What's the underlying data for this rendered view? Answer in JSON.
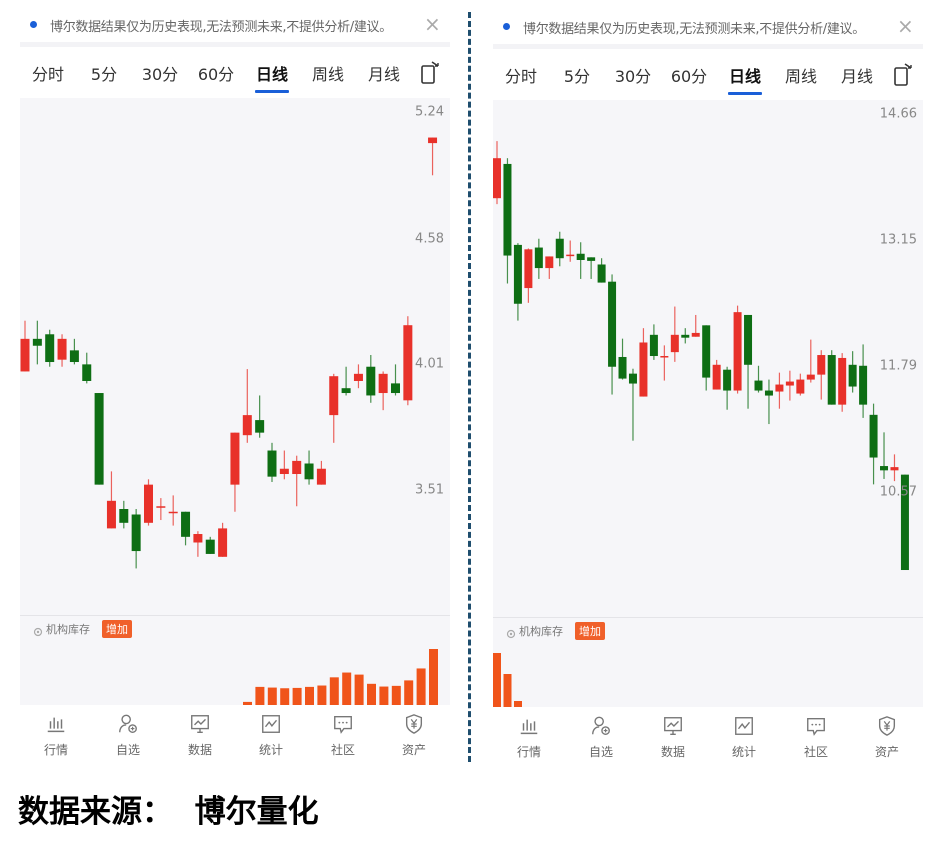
{
  "colors": {
    "up": "#e8312a",
    "down": "#0e6e14",
    "accent": "#1a5fd8",
    "volume": "#f0541a",
    "divider": "#1f4e6e"
  },
  "panels": [
    {
      "notice": "博尔数据结果仅为历史表现,无法预测未来,不提供分析/建议。",
      "notice_close_icon": "close-icon",
      "tabs": [
        "分时",
        "5分",
        "30分",
        "60分",
        "日线",
        "周线",
        "月线"
      ],
      "active_tab": "日线",
      "rotate_icon": "rotate-screen-icon",
      "indicator_label": "机构库存",
      "indicator_badge": "增加",
      "nav": [
        "行情",
        "自选",
        "数据",
        "统计",
        "社区",
        "资产"
      ]
    },
    {
      "notice": "博尔数据结果仅为历史表现,无法预测未来,不提供分析/建议。",
      "notice_close_icon": "close-icon",
      "tabs": [
        "分时",
        "5分",
        "30分",
        "60分",
        "日线",
        "周线",
        "月线"
      ],
      "active_tab": "日线",
      "rotate_icon": "rotate-screen-icon",
      "indicator_label": "机构库存",
      "indicator_badge": "增加",
      "nav": [
        "行情",
        "自选",
        "数据",
        "统计",
        "社区",
        "资产"
      ]
    }
  ],
  "footer": "数据来源：  博尔量化",
  "chart_data": [
    {
      "type": "candlestick",
      "scale": "log",
      "y_ticks": [
        "5.24",
        "4.58",
        "4.01",
        "3.51"
      ],
      "ylim": [
        3.51,
        5.24
      ],
      "candles_ohlc": [
        [
          3.98,
          4.2,
          3.98,
          4.12
        ],
        [
          4.12,
          4.2,
          4.01,
          4.09
        ],
        [
          4.14,
          4.16,
          4.0,
          4.02
        ],
        [
          4.03,
          4.14,
          4.0,
          4.12
        ],
        [
          4.07,
          4.12,
          4.01,
          4.02
        ],
        [
          4.01,
          4.06,
          3.93,
          3.94
        ],
        [
          3.89,
          3.89,
          3.53,
          3.53
        ],
        [
          3.37,
          3.58,
          3.37,
          3.47
        ],
        [
          3.44,
          3.47,
          3.37,
          3.39
        ],
        [
          3.42,
          3.44,
          3.23,
          3.29
        ],
        [
          3.39,
          3.55,
          3.38,
          3.53
        ],
        [
          3.45,
          3.48,
          3.4,
          3.45
        ],
        [
          3.43,
          3.49,
          3.38,
          3.43
        ],
        [
          3.43,
          3.43,
          3.31,
          3.34
        ],
        [
          3.32,
          3.36,
          3.27,
          3.35
        ],
        [
          3.33,
          3.34,
          3.28,
          3.28
        ],
        [
          3.27,
          3.39,
          3.27,
          3.37
        ],
        [
          3.53,
          3.73,
          3.43,
          3.73
        ],
        [
          3.72,
          3.99,
          3.69,
          3.8
        ],
        [
          3.78,
          3.88,
          3.71,
          3.73
        ],
        [
          3.66,
          3.69,
          3.54,
          3.56
        ],
        [
          3.57,
          3.66,
          3.55,
          3.59
        ],
        [
          3.57,
          3.64,
          3.45,
          3.62
        ],
        [
          3.61,
          3.66,
          3.53,
          3.55
        ],
        [
          3.53,
          3.62,
          3.53,
          3.59
        ],
        [
          3.8,
          3.97,
          3.69,
          3.96
        ],
        [
          3.91,
          4.0,
          3.88,
          3.89
        ],
        [
          3.94,
          4.01,
          3.91,
          3.97
        ],
        [
          4.0,
          4.05,
          3.85,
          3.88
        ],
        [
          3.89,
          3.98,
          3.82,
          3.97
        ],
        [
          3.93,
          4.01,
          3.88,
          3.89
        ],
        [
          3.86,
          4.22,
          3.84,
          4.18
        ],
        null,
        [
          5.07,
          5.1,
          4.9,
          5.1
        ]
      ],
      "indicator_values": [
        12,
        56,
        54,
        52,
        53,
        56,
        60,
        84,
        98,
        92,
        65,
        57,
        59,
        75,
        110,
        167
      ]
    },
    {
      "type": "candlestick",
      "scale": "log",
      "y_ticks": [
        "14.66",
        "13.15",
        "11.79",
        "10.57"
      ],
      "ylim": [
        10.57,
        14.66
      ],
      "candles_ohlc": [
        [
          13.63,
          14.32,
          13.56,
          14.11
        ],
        [
          14.04,
          14.11,
          12.66,
          12.97
        ],
        [
          13.09,
          13.11,
          12.26,
          12.44
        ],
        [
          12.61,
          13.05,
          12.45,
          13.04
        ],
        [
          13.06,
          13.16,
          12.71,
          12.83
        ],
        [
          12.83,
          12.96,
          12.71,
          12.96
        ],
        [
          13.16,
          13.24,
          12.85,
          12.94
        ],
        [
          12.97,
          13.14,
          12.9,
          12.98
        ],
        [
          12.99,
          13.12,
          12.71,
          12.92
        ],
        [
          12.95,
          12.95,
          12.71,
          12.91
        ],
        [
          12.87,
          12.94,
          12.67,
          12.67
        ],
        [
          12.68,
          12.76,
          11.5,
          11.78
        ],
        [
          11.88,
          12.07,
          11.65,
          11.66
        ],
        [
          11.71,
          11.76,
          11.05,
          11.61
        ],
        [
          11.48,
          12.18,
          11.48,
          12.03
        ],
        [
          12.11,
          12.22,
          11.85,
          11.89
        ],
        [
          11.89,
          12.0,
          11.64,
          11.89
        ],
        [
          11.93,
          12.41,
          11.83,
          12.11
        ],
        [
          12.11,
          12.18,
          12.02,
          12.08
        ],
        [
          12.09,
          12.32,
          12.09,
          12.13
        ],
        [
          12.21,
          12.21,
          11.54,
          11.67
        ],
        [
          11.55,
          11.85,
          11.55,
          11.8
        ],
        [
          11.75,
          11.78,
          11.35,
          11.54
        ],
        [
          11.54,
          12.42,
          11.51,
          12.35
        ],
        [
          12.32,
          12.32,
          11.36,
          11.8
        ],
        [
          11.64,
          11.79,
          11.52,
          11.54
        ],
        [
          11.54,
          11.65,
          11.21,
          11.49
        ],
        [
          11.53,
          11.72,
          11.36,
          11.6
        ],
        [
          11.59,
          11.74,
          11.44,
          11.63
        ],
        [
          11.51,
          11.71,
          11.49,
          11.65
        ],
        [
          11.65,
          12.06,
          11.62,
          11.7
        ],
        [
          11.7,
          11.95,
          11.45,
          11.9
        ],
        [
          11.9,
          11.95,
          11.4,
          11.4
        ],
        [
          11.4,
          11.92,
          11.33,
          11.87
        ],
        [
          11.8,
          11.94,
          11.52,
          11.58
        ],
        [
          11.79,
          12.01,
          11.27,
          11.4
        ],
        [
          11.3,
          11.41,
          10.64,
          10.89
        ],
        [
          10.81,
          11.13,
          10.69,
          10.77
        ],
        [
          10.77,
          10.92,
          10.67,
          10.8
        ],
        [
          10.73,
          10.73,
          9.88,
          9.88
        ]
      ],
      "indicator_values": [
        55,
        34,
        7
      ]
    }
  ]
}
